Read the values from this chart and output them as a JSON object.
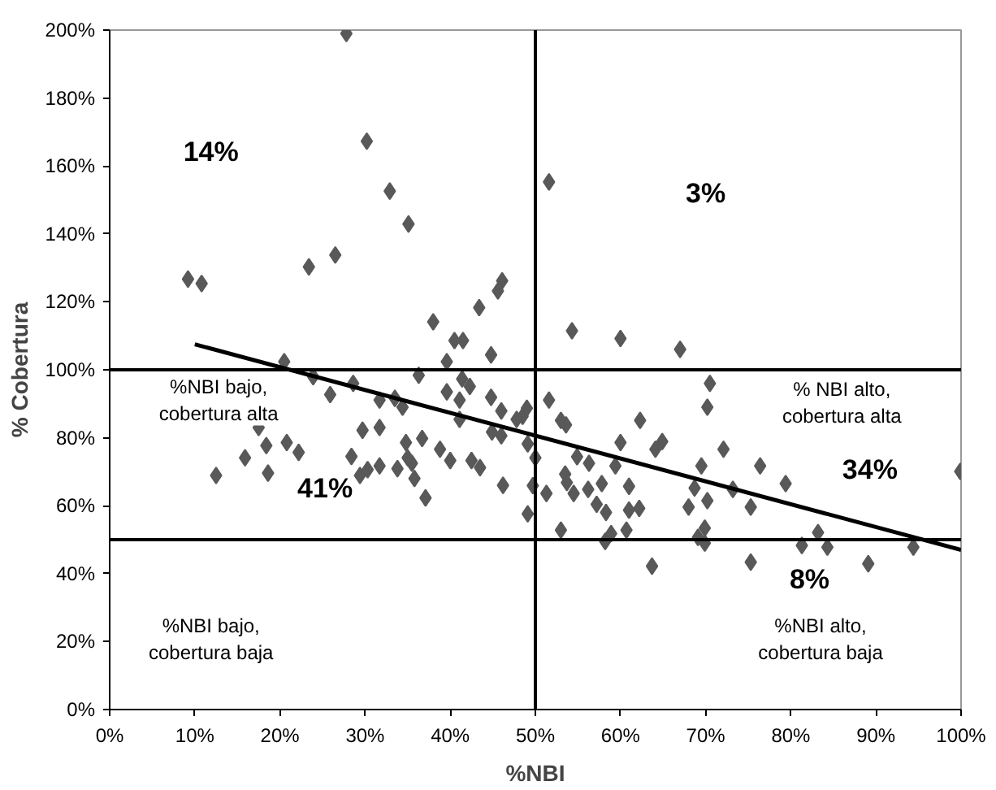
{
  "chart_data": {
    "type": "scatter",
    "xlabel": "%NBI",
    "ylabel": "% Cobertura",
    "grid": false,
    "xlim": [
      0,
      100
    ],
    "ylim": [
      0,
      200
    ],
    "xticks": [
      {
        "value": 0,
        "label": "0%"
      },
      {
        "value": 10,
        "label": "10%"
      },
      {
        "value": 20,
        "label": "20%"
      },
      {
        "value": 30,
        "label": "30%"
      },
      {
        "value": 40,
        "label": "40%"
      },
      {
        "value": 50,
        "label": "50%"
      },
      {
        "value": 60,
        "label": "60%"
      },
      {
        "value": 70,
        "label": "70%"
      },
      {
        "value": 80,
        "label": "80%"
      },
      {
        "value": 90,
        "label": "90%"
      },
      {
        "value": 100,
        "label": "100%"
      }
    ],
    "yticks": [
      {
        "value": 0,
        "label": "0%"
      },
      {
        "value": 20,
        "label": "20%"
      },
      {
        "value": 40,
        "label": "40%"
      },
      {
        "value": 60,
        "label": "60%"
      },
      {
        "value": 80,
        "label": "80%"
      },
      {
        "value": 100,
        "label": "100%"
      },
      {
        "value": 120,
        "label": "120%"
      },
      {
        "value": 140,
        "label": "140%"
      },
      {
        "value": 160,
        "label": "160%"
      },
      {
        "value": 180,
        "label": "180%"
      },
      {
        "value": 200,
        "label": "200%"
      }
    ],
    "ref_lines": [
      {
        "axis": "y",
        "value": 100,
        "color": "#000000"
      },
      {
        "axis": "y",
        "value": 50,
        "color": "#000000"
      },
      {
        "axis": "x",
        "value": 50,
        "color": "#000000"
      }
    ],
    "series": [
      {
        "marker": "diamond",
        "color": "#595959",
        "x": [
          27.8,
          30.2,
          32.9,
          35.1,
          9.2,
          10.8,
          23.4,
          26.5,
          46.1,
          45.6,
          43.4,
          38.0,
          40.5,
          41.5,
          44.8,
          39.6,
          20.5,
          36.3,
          23.9,
          28.6,
          25.9,
          51.6,
          54.3,
          60.0,
          67.0,
          70.5,
          31.7,
          33.5,
          34.4,
          41.4,
          42.3,
          39.6,
          41.1,
          44.8,
          46.0,
          41.1,
          48.5,
          49.0,
          44.9,
          46.0,
          49.1,
          17.5,
          29.7,
          31.7,
          20.8,
          18.4,
          22.2,
          15.9,
          34.8,
          36.7,
          28.4,
          38.8,
          40.0,
          42.5,
          43.5,
          12.5,
          18.6,
          29.4,
          30.3,
          31.7,
          33.8,
          35.5,
          35.8,
          37.1,
          46.2,
          49.1,
          35.0,
          70.2,
          51.6,
          47.8,
          50.0,
          49.7,
          51.3,
          53.0,
          53.6,
          53.0,
          54.9,
          56.3,
          53.5,
          53.7,
          54.5,
          56.2,
          57.8,
          57.2,
          58.3,
          58.2,
          58.9,
          59.4,
          60.0,
          61.0,
          61.0,
          62.2,
          60.7,
          62.3,
          64.1,
          64.9,
          63.7,
          68.0,
          68.7,
          69.5,
          70.2,
          69.1,
          69.9,
          69.9,
          72.1,
          73.2,
          75.3,
          76.4,
          75.3,
          79.4,
          81.3,
          83.2,
          84.3,
          89.1,
          94.4,
          99.9
        ],
        "values": [
          199,
          167.3,
          152.6,
          142.9,
          126.7,
          125.4,
          130.3,
          133.8,
          126.2,
          123.2,
          118.3,
          114.1,
          108.6,
          108.6,
          104.4,
          102.4,
          102.4,
          98.4,
          98.0,
          96.0,
          92.7,
          155.3,
          111.5,
          109.2,
          106.0,
          96.0,
          91.1,
          91.6,
          89.0,
          97.3,
          95.1,
          93.5,
          91.1,
          91.9,
          87.9,
          85.4,
          86.3,
          88.7,
          81.7,
          80.6,
          78.2,
          83.0,
          82.2,
          83.0,
          78.6,
          77.7,
          75.7,
          74.1,
          78.6,
          79.8,
          74.5,
          76.6,
          73.3,
          73.3,
          71.2,
          68.9,
          69.6,
          68.9,
          70.6,
          71.7,
          70.9,
          72.5,
          68.0,
          62.3,
          66.0,
          57.6,
          74.1,
          89.0,
          91.1,
          85.4,
          74.1,
          65.9,
          63.6,
          85.1,
          83.8,
          52.8,
          74.4,
          72.5,
          69.3,
          66.8,
          63.6,
          64.8,
          66.5,
          60.4,
          58.0,
          49.5,
          51.8,
          71.7,
          78.6,
          65.7,
          58.7,
          59.2,
          52.8,
          85.1,
          76.6,
          78.9,
          42.2,
          59.6,
          65.2,
          71.7,
          61.5,
          50.7,
          49.0,
          53.4,
          76.6,
          64.8,
          59.6,
          71.7,
          43.4,
          66.5,
          48.3,
          52.1,
          47.8,
          42.9,
          47.8,
          70.1
        ]
      },
      {
        "type": "line",
        "color": "#000000",
        "line_style": "solid",
        "x": [
          10,
          100
        ],
        "values": [
          107.5,
          47
        ]
      }
    ],
    "annotations": [
      "14%",
      "3%",
      "41%",
      "34%",
      "8%",
      "%NBI bajo,\ncobertura alta",
      "% NBI alto,\ncobertura alta",
      "%NBI bajo,\ncobertura baja",
      "%NBI alto,\ncobertura baja"
    ]
  }
}
